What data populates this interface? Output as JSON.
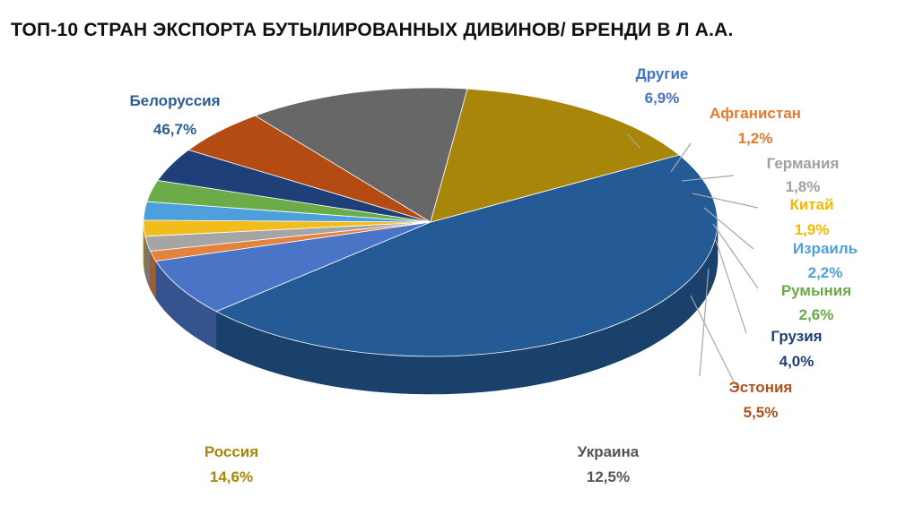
{
  "chart_data": {
    "type": "pie",
    "title": "ТОП-10 СТРАН ЭКСПОРТА БУТЫЛИРОВАННЫХ ДИВИНОВ/ БРЕНДИ В Л А.А.",
    "slices": [
      {
        "label": "Белоруссия",
        "value_label": "46,7%",
        "value": 46.7,
        "color": "#245a95"
      },
      {
        "label": "Другие",
        "value_label": "6,9%",
        "value": 6.9,
        "color": "#4a74c6"
      },
      {
        "label": "Афганистан",
        "value_label": "1,2%",
        "value": 1.2,
        "color": "#e4833e"
      },
      {
        "label": "Германия",
        "value_label": "1,8%",
        "value": 1.8,
        "color": "#a5a5a5"
      },
      {
        "label": "Китай",
        "value_label": "1,9%",
        "value": 1.9,
        "color": "#f2bd1c"
      },
      {
        "label": "Израиль",
        "value_label": "2,2%",
        "value": 2.2,
        "color": "#4ea0dc"
      },
      {
        "label": "Румыния",
        "value_label": "2,6%",
        "value": 2.6,
        "color": "#6cac48"
      },
      {
        "label": "Грузия",
        "value_label": "4,0%",
        "value": 4.0,
        "color": "#1f3f78"
      },
      {
        "label": "Эстония",
        "value_label": "5,5%",
        "value": 5.5,
        "color": "#b44b13"
      },
      {
        "label": "Украина",
        "value_label": "12,5%",
        "value": 12.5,
        "color": "#676767"
      },
      {
        "label": "Россия",
        "value_label": "14,6%",
        "value": 14.6,
        "color": "#a8860a"
      }
    ],
    "label_colors": {
      "Белоруссия": "#2a5d96",
      "Другие": "#4472c4",
      "Афганистан": "#e07a30",
      "Германия": "#a0a0a0",
      "Китай": "#f0b800",
      "Израиль": "#4ea0dc",
      "Румыния": "#6aaa46",
      "Грузия": "#1f3f78",
      "Эстония": "#b0501a",
      "Украина": "#555555",
      "Россия": "#a8860a"
    }
  }
}
